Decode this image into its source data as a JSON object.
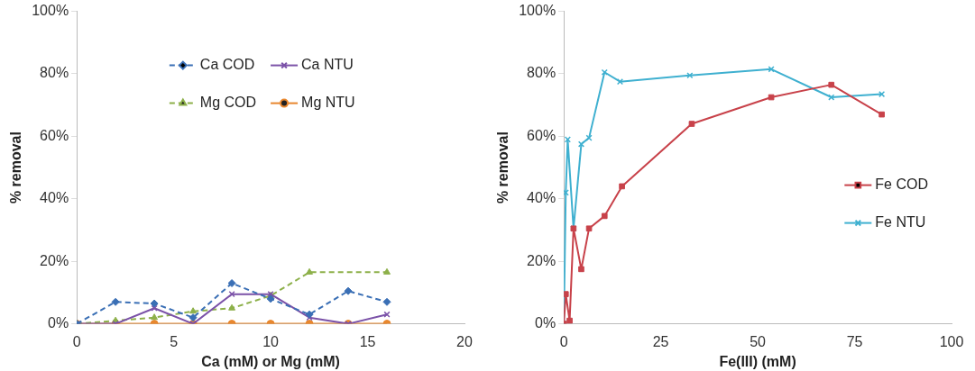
{
  "chart_data": [
    {
      "type": "line",
      "xlabel": "Ca (mM) or Mg (mM)",
      "ylabel": "% removal",
      "legend": "top",
      "grid": false,
      "x": [
        0,
        2,
        4,
        6,
        8,
        10,
        12,
        14,
        16
      ],
      "xlim": [
        0,
        20
      ],
      "xticks": [
        0,
        5,
        10,
        15,
        20
      ],
      "ylim": [
        0,
        100
      ],
      "yticks": [
        {
          "value": 0,
          "label": "0%"
        },
        {
          "value": 20,
          "label": "20%"
        },
        {
          "value": 40,
          "label": "40%"
        },
        {
          "value": 60,
          "label": "60%"
        },
        {
          "value": 80,
          "label": "80%"
        },
        {
          "value": 100,
          "label": "100%"
        }
      ],
      "series": [
        {
          "name": "Ca COD",
          "color": "#3a6fb5",
          "marker": "diamond",
          "line_style": "dashed",
          "values": [
            0,
            7,
            6.5,
            2,
            13,
            8,
            3,
            10.5,
            7
          ]
        },
        {
          "name": "Ca NTU",
          "color": "#7b52a8",
          "marker": "cross",
          "line_style": "solid",
          "values": [
            0,
            0,
            5,
            0,
            9.5,
            9.5,
            2,
            0,
            3
          ]
        },
        {
          "name": "Mg COD",
          "color": "#8db04a",
          "marker": "triangle",
          "line_style": "dashed",
          "x": [
            0,
            2,
            4,
            6,
            8,
            10,
            12,
            16
          ],
          "values": [
            0,
            1,
            2,
            4,
            5,
            9,
            16.5,
            16.5
          ]
        },
        {
          "name": "Mg NTU",
          "color": "#e8872e",
          "marker": "circle",
          "line_style": "solid",
          "values": [
            0,
            0,
            0,
            0,
            0,
            0,
            0,
            0,
            0
          ]
        }
      ]
    },
    {
      "type": "line",
      "xlabel": "Fe(III) (mM)",
      "ylabel": "% removal",
      "legend": "bottom right",
      "grid": false,
      "xlim": [
        0,
        100
      ],
      "xticks": [
        0,
        25,
        50,
        75,
        100
      ],
      "ylim": [
        0,
        100
      ],
      "yticks": [
        {
          "value": 0,
          "label": "0%"
        },
        {
          "value": 20,
          "label": "20%"
        },
        {
          "value": 40,
          "label": "40%"
        },
        {
          "value": 60,
          "label": "60%"
        },
        {
          "value": 80,
          "label": "80%"
        },
        {
          "value": 100,
          "label": "100%"
        }
      ],
      "series": [
        {
          "name": "Fe COD",
          "color": "#c8424a",
          "marker": "square",
          "line_style": "solid",
          "x": [
            0,
            0.5,
            1.5,
            2.5,
            4.5,
            6.5,
            10.5,
            15,
            33,
            53.5,
            69,
            82
          ],
          "values": [
            0,
            9.5,
            1,
            30.5,
            17.5,
            30.5,
            34.5,
            44,
            64,
            72.5,
            76.5,
            67
          ]
        },
        {
          "name": "Fe NTU",
          "color": "#3fb0d0",
          "marker": "cross",
          "line_style": "solid",
          "x": [
            0,
            0.5,
            1,
            2.5,
            4.5,
            6.5,
            10.5,
            14.5,
            32.5,
            53.5,
            69,
            82
          ],
          "values": [
            0,
            42,
            59,
            30.5,
            57.5,
            59.5,
            80.5,
            77.5,
            79.5,
            81.5,
            72.5,
            73.5
          ]
        }
      ]
    }
  ]
}
